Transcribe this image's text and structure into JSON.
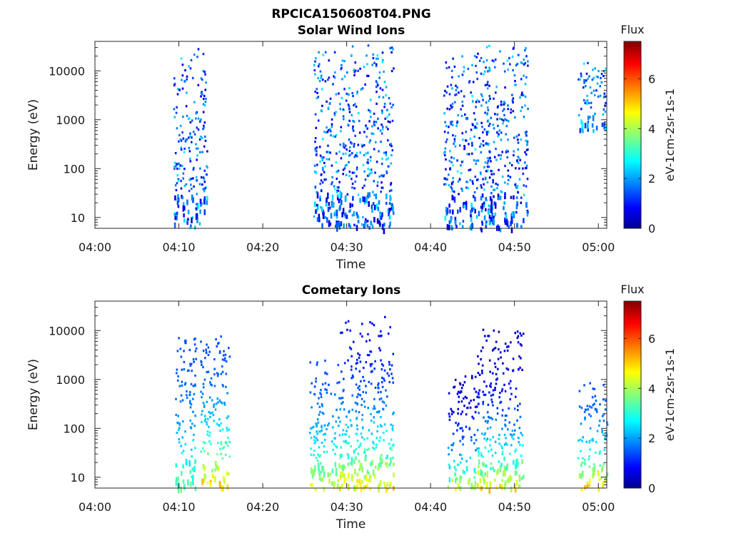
{
  "figure_title": "RPCICA150608T04.PNG",
  "chart_data": [
    {
      "type": "heatmap",
      "title": "Solar Wind Ions",
      "xlabel": "Time",
      "ylabel": "Energy (eV)",
      "x_ticks": [
        "04:00",
        "04:10",
        "04:20",
        "04:30",
        "04:40",
        "04:50",
        "05:00"
      ],
      "x_range_min": [
        0,
        61
      ],
      "y_scale": "log",
      "y_ticks": [
        "10",
        "100",
        "1000",
        "10000"
      ],
      "y_range_eV": [
        6,
        40000
      ],
      "colorbar": {
        "title": "Flux",
        "label": "eV-1cm-2sr-1s-1",
        "ticks": [
          "0",
          "2",
          "4",
          "6"
        ],
        "range": [
          0,
          7.5
        ],
        "colormap": "jet"
      },
      "grid": false,
      "clusters": [
        {
          "t": [
            9.3,
            13.3
          ],
          "e": [
            6,
            30000
          ],
          "level": [
            0.5,
            3.0
          ]
        },
        {
          "t": [
            26.0,
            35.5
          ],
          "e": [
            6,
            35000
          ],
          "level": [
            0.5,
            3.0
          ]
        },
        {
          "t": [
            41.5,
            47.0
          ],
          "e": [
            6,
            25000
          ],
          "level": [
            0.5,
            3.0
          ]
        },
        {
          "t": [
            46.5,
            51.5
          ],
          "e": [
            6,
            35000
          ],
          "level": [
            0.5,
            3.0
          ]
        },
        {
          "t": [
            57.5,
            60.8
          ],
          "e": [
            600,
            25000
          ],
          "level": [
            1.0,
            3.0
          ]
        }
      ]
    },
    {
      "type": "heatmap",
      "title": "Cometary Ions",
      "xlabel": "Time",
      "ylabel": "Energy (eV)",
      "x_ticks": [
        "04:00",
        "04:10",
        "04:20",
        "04:30",
        "04:40",
        "04:50",
        "05:00"
      ],
      "x_range_min": [
        0,
        61
      ],
      "y_scale": "log",
      "y_ticks": [
        "10",
        "100",
        "1000",
        "10000"
      ],
      "y_range_eV": [
        6,
        40000
      ],
      "colorbar": {
        "title": "Flux",
        "label": "eV-1cm-2sr-1s-1",
        "ticks": [
          "0",
          "2",
          "4",
          "6"
        ],
        "range": [
          0,
          7.5
        ],
        "colormap": "jet"
      },
      "grid": false,
      "clusters": [
        {
          "t": [
            9.5,
            12.0
          ],
          "e": [
            6,
            9000
          ],
          "level": [
            1.5,
            4.0
          ]
        },
        {
          "t": [
            12.5,
            16.0
          ],
          "e": [
            6,
            8000
          ],
          "level": [
            1.5,
            5.8
          ]
        },
        {
          "t": [
            25.5,
            29.0
          ],
          "e": [
            6,
            3000
          ],
          "level": [
            1.5,
            5.0
          ]
        },
        {
          "t": [
            29.0,
            35.5
          ],
          "e": [
            6,
            20000
          ],
          "level": [
            1.0,
            5.5
          ]
        },
        {
          "t": [
            42.0,
            45.5
          ],
          "e": [
            6,
            1500
          ],
          "level": [
            0.5,
            5.0
          ]
        },
        {
          "t": [
            45.5,
            51.0
          ],
          "e": [
            6,
            12000
          ],
          "level": [
            0.5,
            5.5
          ]
        },
        {
          "t": [
            57.5,
            61.0
          ],
          "e": [
            6,
            1000
          ],
          "level": [
            1.5,
            5.8
          ]
        }
      ]
    }
  ]
}
